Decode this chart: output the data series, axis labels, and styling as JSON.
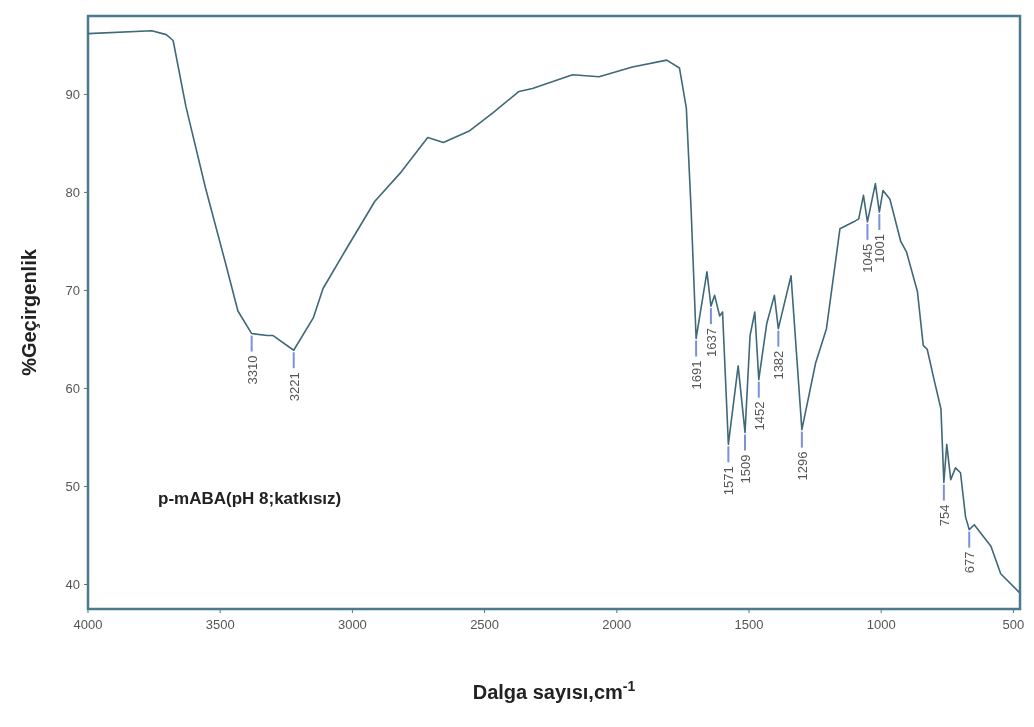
{
  "chart_data": {
    "type": "line",
    "xlabel": "Dalga sayısı,cm$^{-1}$",
    "ylabel": "%Geçirgenlik",
    "xlim": [
      4000,
      475
    ],
    "xticks": [
      4000,
      3500,
      3000,
      2500,
      2000,
      1500,
      1000,
      500
    ],
    "ylim": [
      37.5,
      98
    ],
    "yticks": [
      40,
      50,
      60,
      70,
      80,
      90
    ],
    "grid": false,
    "marker": "none",
    "line_style": "solid",
    "series": [
      {
        "color": "#3f6878",
        "x": [
          4000,
          3759,
          3704,
          3678,
          3630,
          3556,
          3481,
          3433,
          3381,
          3322,
          3300,
          3222,
          3148,
          3111,
          3026,
          2915,
          2815,
          2715,
          2656,
          2556,
          2470,
          2370,
          2319,
          2167,
          2067,
          1941,
          1811,
          1763,
          1737,
          1719,
          1700,
          1659,
          1644,
          1630,
          1611,
          1600,
          1578,
          1541,
          1515,
          1496,
          1478,
          1463,
          1433,
          1404,
          1389,
          1341,
          1300,
          1248,
          1207,
          1156,
          1104,
          1085,
          1067,
          1052,
          1022,
          1007,
          993,
          967,
          926,
          904,
          863,
          841,
          826,
          800,
          774,
          763,
          752,
          737,
          719,
          700,
          681,
          667,
          648,
          585,
          548,
          478
        ],
        "values": [
          96.2,
          96.5,
          96.1,
          95.5,
          88.8,
          80.5,
          72.9,
          67.9,
          65.6,
          65.4,
          65.4,
          63.9,
          67.2,
          70.2,
          74.1,
          79.1,
          82.1,
          85.6,
          85.1,
          86.3,
          88.1,
          90.3,
          90.6,
          92.0,
          91.8,
          92.8,
          93.5,
          92.7,
          88.6,
          78.3,
          65.1,
          71.9,
          68.4,
          69.5,
          67.4,
          67.8,
          54.3,
          62.3,
          55.5,
          65.4,
          67.8,
          60.9,
          66.6,
          69.5,
          66.1,
          71.5,
          55.8,
          62.6,
          66.1,
          76.3,
          77.0,
          77.3,
          79.7,
          77.0,
          80.9,
          78.0,
          80.2,
          79.3,
          75.0,
          73.9,
          69.9,
          64.4,
          64.0,
          60.9,
          57.9,
          50.4,
          54.3,
          50.7,
          51.9,
          51.4,
          46.9,
          45.6,
          46.1,
          43.9,
          41.1,
          39.2
        ]
      }
    ],
    "annotations": [
      "p-mABA(pH 8;katkısız)",
      {
        "text": "3310",
        "x": 3381,
        "y": 65.6
      },
      {
        "text": "3221",
        "x": 3222,
        "y": 63.9
      },
      {
        "text": "1691",
        "x": 1700,
        "y": 65.1
      },
      {
        "text": "1637",
        "x": 1644,
        "y": 68.4
      },
      {
        "text": "1571",
        "x": 1578,
        "y": 54.3
      },
      {
        "text": "1509",
        "x": 1515,
        "y": 55.5
      },
      {
        "text": "1452",
        "x": 1463,
        "y": 60.9
      },
      {
        "text": "1382",
        "x": 1389,
        "y": 66.1
      },
      {
        "text": "1296",
        "x": 1300,
        "y": 55.8
      },
      {
        "text": "1045",
        "x": 1052,
        "y": 77.0
      },
      {
        "text": "1001",
        "x": 1007,
        "y": 78.0
      },
      {
        "text": "754",
        "x": 763,
        "y": 50.4
      },
      {
        "text": "677",
        "x": 667,
        "y": 45.6
      }
    ]
  }
}
